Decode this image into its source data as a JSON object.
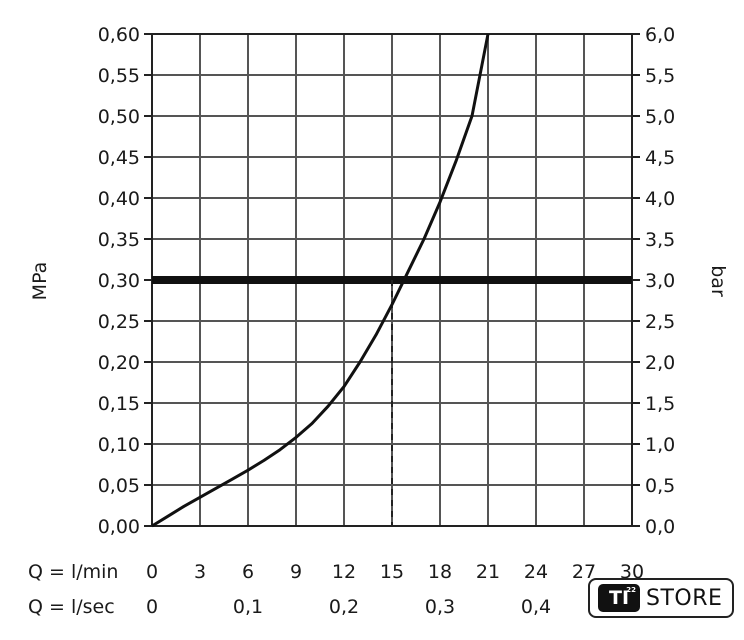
{
  "chart_data": {
    "type": "line",
    "ylabel_left": "MPa",
    "ylabel_right": "bar",
    "y_left_ticks": [
      "0,00",
      "0,05",
      "0,10",
      "0,15",
      "0,20",
      "0,25",
      "0,30",
      "0,35",
      "0,40",
      "0,45",
      "0,50",
      "0,55",
      "0,60"
    ],
    "y_right_ticks": [
      "0,0",
      "0,5",
      "1,0",
      "1,5",
      "2,0",
      "2,5",
      "3,0",
      "3,5",
      "4,0",
      "4,5",
      "5,0",
      "5,5",
      "6,0"
    ],
    "ylim": [
      0,
      0.6
    ],
    "xlim": [
      0,
      30
    ],
    "x_axis_rows": [
      {
        "label": "Q = l/min",
        "ticks": [
          "0",
          "3",
          "6",
          "9",
          "12",
          "15",
          "18",
          "21",
          "24",
          "27",
          "30"
        ],
        "values": [
          0,
          3,
          6,
          9,
          12,
          15,
          18,
          21,
          24,
          27,
          30
        ]
      },
      {
        "label": "Q = l/sec",
        "ticks": [
          "0",
          "0,1",
          "0,2",
          "0,3",
          "0,4"
        ],
        "values": [
          0,
          6,
          12,
          18,
          24
        ]
      }
    ],
    "grid": true,
    "series": [
      {
        "x": [
          0,
          1,
          2,
          3,
          4,
          5,
          6,
          7,
          8,
          9,
          10,
          11,
          12,
          13,
          14,
          15,
          16,
          17,
          18,
          19,
          20,
          21
        ],
        "y": [
          0,
          0.012,
          0.024,
          0.035,
          0.046,
          0.057,
          0.068,
          0.08,
          0.093,
          0.108,
          0.125,
          0.146,
          0.17,
          0.2,
          0.233,
          0.27,
          0.31,
          0.35,
          0.395,
          0.445,
          0.5,
          0.6
        ]
      }
    ],
    "reference_line_y": 0.3,
    "reference_marker_x": 15
  },
  "logo": {
    "mark": "TI",
    "sup": "22",
    "text": "STORE"
  }
}
